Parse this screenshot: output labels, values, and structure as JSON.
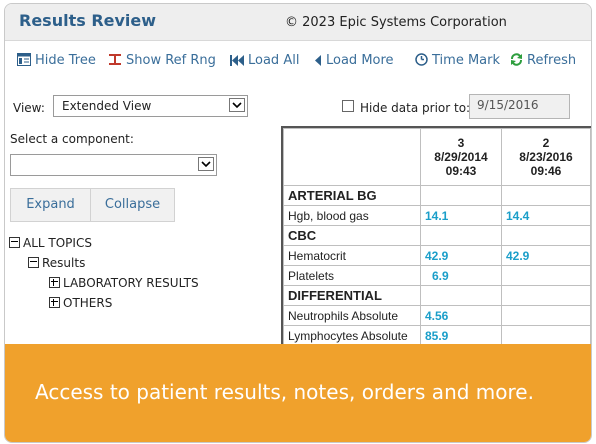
{
  "header": {
    "title": "Results Review",
    "copyright": "© 2023 Epic Systems Corporation"
  },
  "toolbar": {
    "hide_tree": "Hide Tree",
    "show_ref_rng": "Show Ref Rng",
    "load_all": "Load All",
    "load_more": "Load More",
    "time_mark": "Time Mark",
    "refresh": "Refresh"
  },
  "view": {
    "label": "View:",
    "selected": "Extended View"
  },
  "hide_data": {
    "label": "Hide data prior to:",
    "date": "9/15/2016",
    "checked": false
  },
  "component": {
    "label": "Select a component:",
    "selected": ""
  },
  "buttons": {
    "expand": "Expand",
    "collapse": "Collapse"
  },
  "tree": {
    "all_topics": "ALL TOPICS",
    "results": "Results",
    "lab": "LABORATORY RESULTS",
    "others": "OTHERS"
  },
  "grid": {
    "columns": [
      {
        "number": "3",
        "date": "8/29/2014",
        "time": "09:43"
      },
      {
        "number": "2",
        "date": "8/23/2016",
        "time": "09:46"
      }
    ],
    "rows": [
      {
        "name": "ARTERIAL BG",
        "v1": "",
        "v2": ""
      },
      {
        "name": "Hgb, blood gas",
        "v1": "14.1",
        "v2": "14.4"
      },
      {
        "name": "CBC",
        "v1": "",
        "v2": ""
      },
      {
        "name": "Hematocrit",
        "v1": "42.9",
        "v2": "42.9"
      },
      {
        "name": "Platelets",
        "v1": "6.9",
        "v2": ""
      },
      {
        "name": "DIFFERENTIAL",
        "v1": "",
        "v2": ""
      },
      {
        "name": "Neutrophils Absolute",
        "v1": "4.56",
        "v2": ""
      },
      {
        "name": "Lymphocytes Absolute",
        "v1": "85.9",
        "v2": ""
      }
    ]
  },
  "banner": {
    "text": "Access to patient results, notes, orders and more."
  },
  "colors": {
    "accent": "#2d5f8a",
    "banner": "#f0a12c",
    "value": "#1a9ec9",
    "refresh": "#2e9e3e"
  }
}
